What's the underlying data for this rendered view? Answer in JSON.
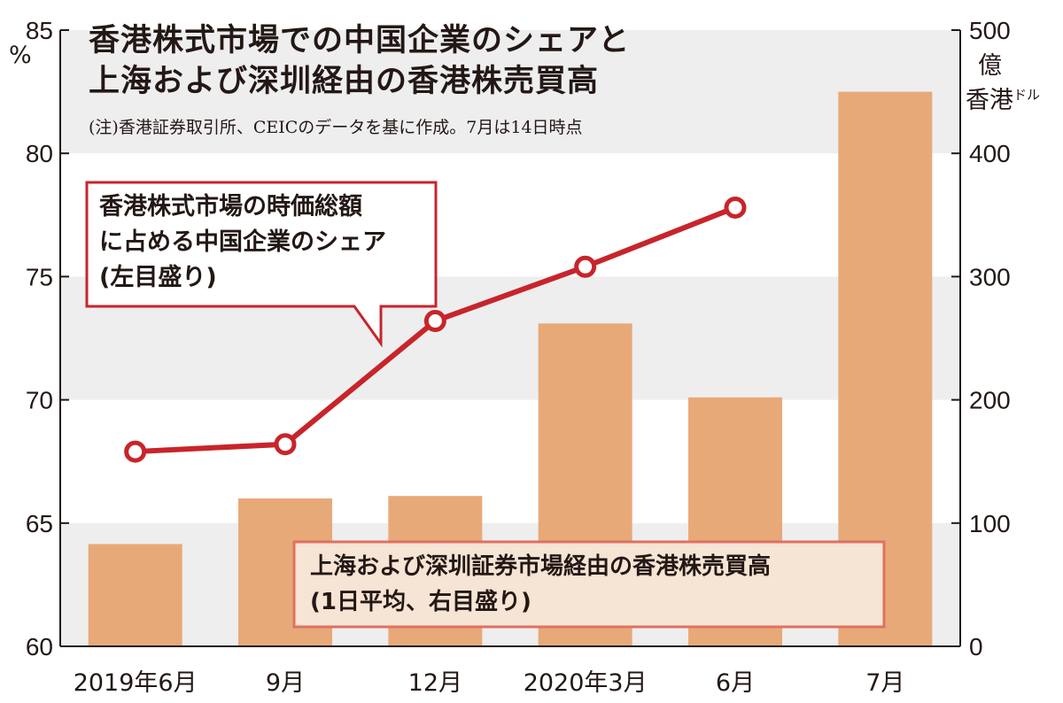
{
  "header": {
    "title_line1": "香港株式市場での中国企業のシェアと",
    "title_line2": "上海および深圳経由の香港株売買高",
    "note": "(注)香港証券取引所、CEICのデータを基に作成。7月は14日時点"
  },
  "axes": {
    "left_unit": "%",
    "right_unit_line1": "億",
    "right_unit_line2": "香港",
    "right_unit_small": "ドル"
  },
  "callouts": {
    "line_label": [
      "香港株式市場の時価総額",
      "に占める中国企業のシェア",
      "(左目盛り)"
    ],
    "bar_label": [
      "上海および深圳証券市場経由の香港株売買高",
      "(1日平均、右目盛り)"
    ]
  },
  "colors": {
    "bar": "#e8a979",
    "line": "#c8242b",
    "band": "#eeeeee",
    "bar_label_fill": "#f6e4d4",
    "bar_label_border": "#e07060"
  },
  "chart_data": {
    "type": "bar+line",
    "categories": [
      "2019年6月",
      "9月",
      "12月",
      "2020年3月",
      "6月",
      "7月"
    ],
    "series": [
      {
        "name": "上海および深圳証券市場経由の香港株売買高(1日平均、右目盛り)",
        "type": "bar",
        "axis": "right",
        "values": [
          83,
          120,
          122,
          262,
          202,
          450
        ]
      },
      {
        "name": "香港株式市場の時価総額に占める中国企業のシェア(左目盛り)",
        "type": "line",
        "axis": "left",
        "values": [
          67.9,
          68.2,
          73.2,
          75.4,
          77.8,
          null
        ]
      }
    ],
    "left_axis": {
      "ylim": [
        60,
        85
      ],
      "ticks": [
        "60",
        "65",
        "70",
        "75",
        "80",
        "85"
      ]
    },
    "right_axis": {
      "ylim": [
        0,
        500
      ],
      "ticks": [
        "0",
        "100",
        "200",
        "300",
        "400",
        "500"
      ]
    },
    "grid": "alternating horizontal bands"
  }
}
